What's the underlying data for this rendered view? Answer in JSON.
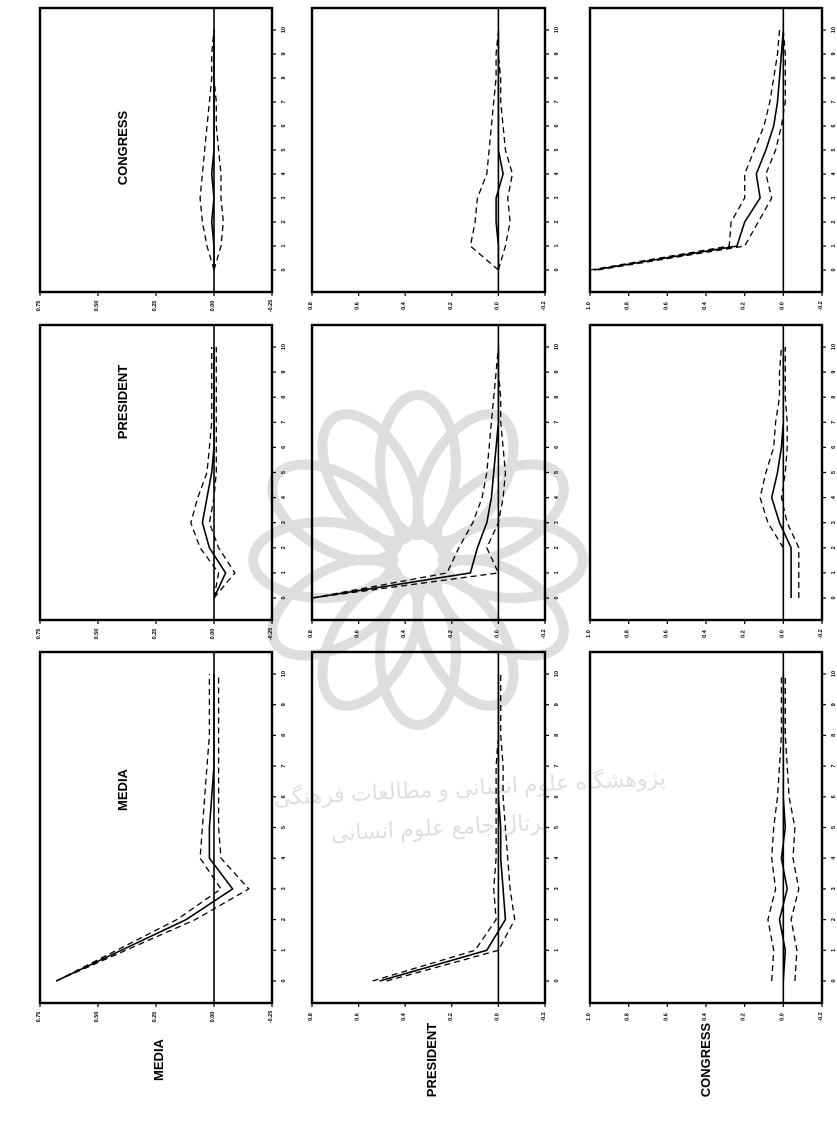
{
  "row_labels": [
    "MEDIA",
    "PRESIDENT",
    "CONGRESS"
  ],
  "column_labels": [
    "MEDIA",
    "PRESIDENT",
    "CONGRESS"
  ],
  "watermark_text": [
    "پژوهشگاه علوم انسانی و مطالعات فرهنگی",
    "پرتال جامع علوم انسانی"
  ],
  "chart_data": {
    "type": "line",
    "layout": "3x3 grid of impulse response panels, printed rotated 90 degrees",
    "x": [
      0,
      1,
      2,
      3,
      4,
      5,
      6,
      7,
      8,
      9,
      10
    ],
    "x_tick_labels": [
      "0",
      "1",
      "2",
      "3",
      "4",
      "5",
      "6",
      "7",
      "8",
      "9",
      "10"
    ],
    "panels": [
      {
        "row": "MEDIA",
        "column": "MEDIA",
        "ylim": [
          -0.25,
          0.75
        ],
        "y_ticks": [
          "0.75",
          "0.50",
          "0.25",
          "0.00",
          "-0.25"
        ],
        "response": [
          0.68,
          0.4,
          0.12,
          -0.08,
          0.02,
          0.02,
          0.01,
          0.0,
          0.0,
          0.0,
          0.0
        ],
        "lower": [
          0.68,
          0.38,
          0.08,
          -0.15,
          -0.03,
          -0.02,
          -0.02,
          -0.02,
          -0.02,
          -0.02,
          -0.02
        ],
        "upper": [
          0.68,
          0.42,
          0.16,
          -0.03,
          0.06,
          0.05,
          0.04,
          0.03,
          0.02,
          0.02,
          0.02
        ]
      },
      {
        "row": "MEDIA",
        "column": "PRESIDENT",
        "ylim": [
          -0.25,
          0.75
        ],
        "y_ticks": [
          "0.75",
          "0.50",
          "0.25",
          "0.00",
          "-0.25"
        ],
        "response": [
          0.0,
          -0.05,
          0.02,
          0.05,
          0.03,
          0.01,
          0.0,
          0.0,
          0.0,
          0.0,
          0.0
        ],
        "lower": [
          0.0,
          -0.09,
          -0.02,
          0.02,
          0.0,
          -0.01,
          -0.01,
          -0.01,
          -0.01,
          -0.01,
          -0.01
        ],
        "upper": [
          0.0,
          -0.02,
          0.06,
          0.1,
          0.07,
          0.03,
          0.02,
          0.01,
          0.01,
          0.01,
          0.01
        ]
      },
      {
        "row": "MEDIA",
        "column": "CONGRESS",
        "ylim": [
          -0.25,
          0.75
        ],
        "y_ticks": [
          "0.75",
          "0.50",
          "0.25",
          "0.00",
          "-0.25"
        ],
        "response": [
          0.0,
          0.0,
          0.01,
          0.0,
          0.01,
          0.0,
          0.0,
          0.0,
          0.0,
          0.0,
          0.0
        ],
        "lower": [
          0.0,
          -0.03,
          -0.04,
          -0.03,
          -0.03,
          -0.02,
          -0.01,
          -0.01,
          0.0,
          0.0,
          0.0
        ],
        "upper": [
          0.0,
          0.03,
          0.05,
          0.06,
          0.05,
          0.04,
          0.03,
          0.02,
          0.01,
          0.01,
          0.0
        ]
      },
      {
        "row": "PRESIDENT",
        "column": "MEDIA",
        "ylim": [
          -0.2,
          0.8
        ],
        "y_ticks": [
          "0.8",
          "0.6",
          "0.4",
          "0.2",
          "0.0",
          "-0.2"
        ],
        "response": [
          0.51,
          0.05,
          -0.03,
          -0.02,
          -0.01,
          -0.01,
          0.0,
          0.0,
          0.0,
          0.0,
          0.0
        ],
        "lower": [
          0.48,
          0.0,
          -0.07,
          -0.05,
          -0.04,
          -0.03,
          -0.02,
          -0.02,
          -0.01,
          -0.01,
          -0.01
        ],
        "upper": [
          0.54,
          0.1,
          0.01,
          0.02,
          0.01,
          0.01,
          0.01,
          0.01,
          0.0,
          0.0,
          0.0
        ]
      },
      {
        "row": "PRESIDENT",
        "column": "PRESIDENT",
        "ylim": [
          -0.2,
          0.8
        ],
        "y_ticks": [
          "0.8",
          "0.6",
          "0.4",
          "0.2",
          "0.0",
          "-0.2"
        ],
        "response": [
          0.8,
          0.12,
          0.09,
          0.05,
          0.03,
          0.02,
          0.01,
          0.0,
          0.0,
          0.0,
          0.0
        ],
        "lower": [
          0.8,
          0.0,
          0.05,
          0.0,
          -0.02,
          -0.03,
          -0.02,
          -0.01,
          -0.01,
          0.0,
          0.0
        ],
        "upper": [
          0.8,
          0.22,
          0.17,
          0.11,
          0.07,
          0.05,
          0.04,
          0.03,
          0.02,
          0.01,
          0.0
        ]
      },
      {
        "row": "PRESIDENT",
        "column": "CONGRESS",
        "ylim": [
          -0.2,
          0.8
        ],
        "y_ticks": [
          "0.8",
          "0.6",
          "0.4",
          "0.2",
          "0.0",
          "-0.2"
        ],
        "response": [
          0.0,
          0.0,
          0.01,
          0.01,
          -0.02,
          0.0,
          0.0,
          0.0,
          0.0,
          0.0,
          0.0
        ],
        "lower": [
          0.0,
          -0.03,
          -0.05,
          -0.04,
          -0.06,
          -0.03,
          -0.02,
          -0.01,
          -0.01,
          0.0,
          0.0
        ],
        "upper": [
          0.0,
          0.12,
          0.1,
          0.09,
          0.05,
          0.04,
          0.03,
          0.02,
          0.01,
          0.01,
          0.0
        ]
      },
      {
        "row": "CONGRESS",
        "column": "MEDIA",
        "ylim": [
          -0.2,
          1.0
        ],
        "y_ticks": [
          "1.0",
          "0.8",
          "0.6",
          "0.4",
          "0.2",
          "0.0",
          "-0.2"
        ],
        "response": [
          0.0,
          -0.01,
          0.02,
          -0.02,
          0.01,
          -0.01,
          0.0,
          0.0,
          0.0,
          0.0,
          0.0
        ],
        "lower": [
          -0.06,
          -0.07,
          -0.04,
          -0.08,
          -0.05,
          -0.06,
          -0.03,
          -0.02,
          -0.01,
          -0.01,
          -0.01
        ],
        "upper": [
          0.06,
          0.05,
          0.08,
          0.04,
          0.06,
          0.05,
          0.03,
          0.02,
          0.01,
          0.01,
          0.01
        ]
      },
      {
        "row": "CONGRESS",
        "column": "PRESIDENT",
        "ylim": [
          -0.2,
          1.0
        ],
        "y_ticks": [
          "1.0",
          "0.8",
          "0.6",
          "0.4",
          "0.2",
          "0.0",
          "-0.2"
        ],
        "response": [
          -0.04,
          -0.04,
          -0.04,
          0.02,
          0.06,
          0.03,
          0.01,
          0.0,
          0.0,
          0.0,
          0.0
        ],
        "lower": [
          -0.08,
          -0.08,
          -0.08,
          -0.02,
          0.01,
          -0.01,
          -0.02,
          -0.02,
          -0.01,
          -0.01,
          -0.01
        ],
        "upper": [
          0.0,
          0.0,
          0.0,
          0.08,
          0.12,
          0.09,
          0.05,
          0.04,
          0.02,
          0.02,
          0.01
        ]
      },
      {
        "row": "CONGRESS",
        "column": "CONGRESS",
        "ylim": [
          -0.2,
          1.0
        ],
        "y_ticks": [
          "1.0",
          "0.8",
          "0.6",
          "0.4",
          "0.2",
          "0.0",
          "-0.2"
        ],
        "response": [
          0.98,
          0.24,
          0.2,
          0.12,
          0.14,
          0.09,
          0.05,
          0.03,
          0.02,
          0.01,
          0.0
        ],
        "lower": [
          0.96,
          0.2,
          0.13,
          0.06,
          0.09,
          0.04,
          0.01,
          -0.01,
          -0.01,
          -0.01,
          0.0
        ],
        "upper": [
          1.0,
          0.28,
          0.27,
          0.2,
          0.2,
          0.15,
          0.1,
          0.07,
          0.05,
          0.03,
          0.02
        ]
      }
    ]
  }
}
